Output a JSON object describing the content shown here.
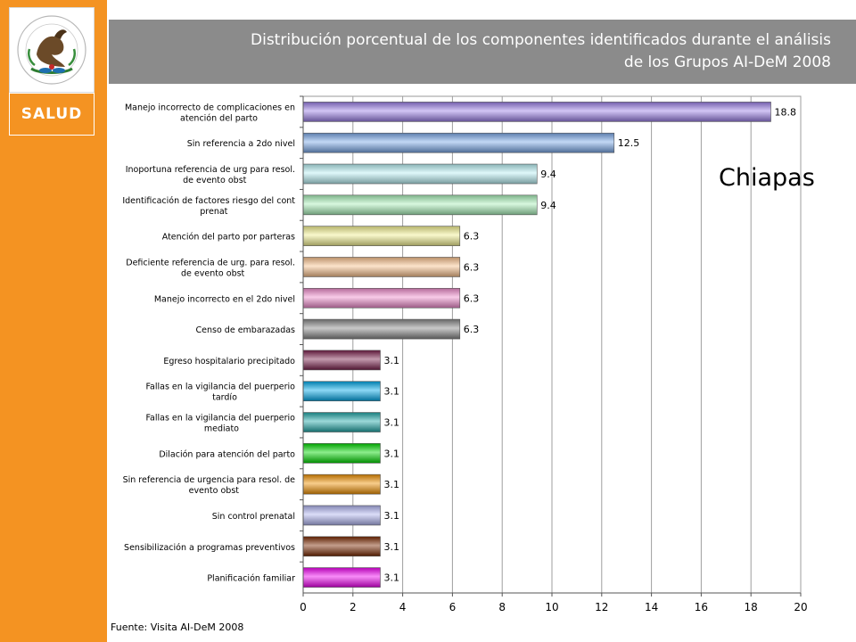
{
  "header": {
    "title_line1": "Distribución porcentual de los componentes identificados durante el análisis",
    "title_line2": "de los Grupos AI-DeM 2008"
  },
  "logo": {
    "text": "SALUD"
  },
  "annotation": {
    "state": "Chiapas"
  },
  "footer": {
    "source": "Fuente: Visita AI-DeM 2008"
  },
  "colors": {
    "sidebar": "#f49322",
    "header": "#8b8b8b"
  },
  "chart_data": {
    "type": "bar",
    "orientation": "horizontal",
    "title": "",
    "xlabel": "",
    "ylabel": "",
    "xlim": [
      0,
      20
    ],
    "xticks": [
      0,
      2,
      4,
      6,
      8,
      10,
      12,
      14,
      16,
      18,
      20
    ],
    "grid": true,
    "categories": [
      [
        "Manejo incorrecto de complicaciones en",
        "atención del parto"
      ],
      [
        "Sin referencia a 2do nivel"
      ],
      [
        "Inoportuna referencia de urg para resol.",
        "de evento obst"
      ],
      [
        "Identificación de factores riesgo del cont",
        "prenat"
      ],
      [
        "Atención del parto por parteras"
      ],
      [
        "Deficiente referencia de urg. para resol.",
        "de evento obst"
      ],
      [
        "Manejo incorrecto en el 2do nivel"
      ],
      [
        "Censo de embarazadas"
      ],
      [
        "Egreso hospitalario precipitado"
      ],
      [
        "Fallas en la vigilancia del puerperio",
        "tardío"
      ],
      [
        "Fallas en la vigilancia del puerperio",
        "mediato"
      ],
      [
        "Dilación para atención del parto"
      ],
      [
        "Sin referencia de urgencia para resol. de",
        "evento obst"
      ],
      [
        "Sin control prenatal"
      ],
      [
        "Sensibilización a programas preventivos"
      ],
      [
        "Planificación familiar"
      ]
    ],
    "values": [
      18.8,
      12.5,
      9.4,
      9.4,
      6.3,
      6.3,
      6.3,
      6.3,
      3.1,
      3.1,
      3.1,
      3.1,
      3.1,
      3.1,
      3.1,
      3.1
    ],
    "value_labels": [
      "18.8",
      "12.5",
      "9.4",
      "9.4",
      "6.3",
      "6.3",
      "6.3",
      "6.3",
      "3.1",
      "3.1",
      "3.1",
      "3.1",
      "3.1",
      "3.1",
      "3.1",
      "3.1"
    ],
    "bar_colors": [
      "#9b7fe6",
      "#7aa8e8",
      "#b8f0f4",
      "#a8f0b8",
      "#f2f090",
      "#f8c08c",
      "#f08ccc",
      "#888888",
      "#7a1e4a",
      "#00a8e8",
      "#20a8a8",
      "#00d800",
      "#f09000",
      "#b0b4f0",
      "#7a2800",
      "#f000f0"
    ]
  }
}
